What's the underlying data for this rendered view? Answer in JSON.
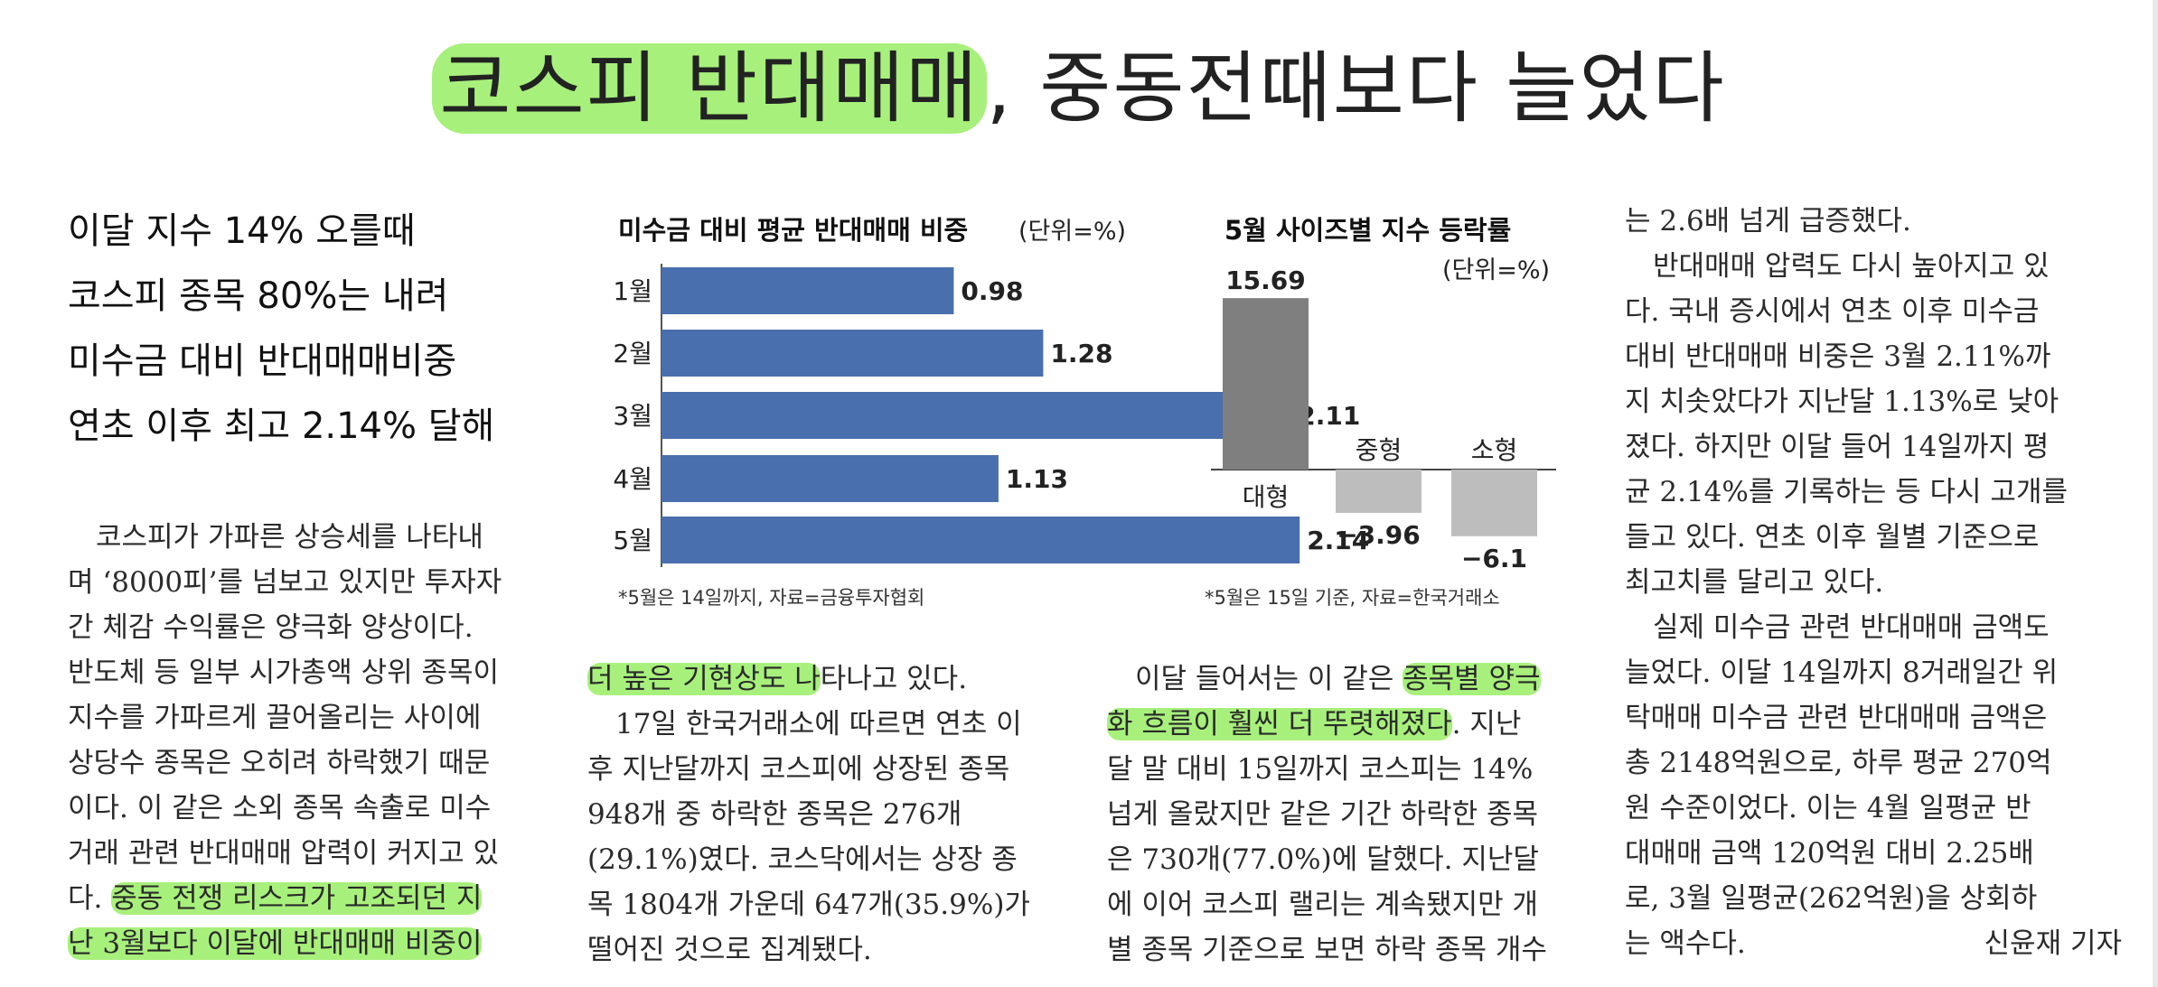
{
  "headline": {
    "highlighted": "코스피 반대매매",
    "rest": ", 중동전때보다 늘었다"
  },
  "subheads": [
    "이달 지수 14% 오를때",
    "코스피 종목 80%는 내려",
    "미수금 대비 반대매매비중",
    "연초 이후 최고 2.14% 달해"
  ],
  "columns": {
    "col1": [
      "　코스피가 가파른 상승세를 나타내",
      "며 ‘8000피’를 넘보고 있지만 투자자",
      "간 체감 수익률은 양극화 양상이다.",
      "반도체 등 일부 시가총액 상위 종목이",
      "지수를 가파르게 끌어올리는 사이에",
      "상당수 종목은 오히려 하락했기 때문",
      "이다. 이 같은 소외 종목 속출로 미수",
      "거래 관련 반대매매 압력이 커지고 있",
      "다. 중동 전쟁 리스크가 고조되던 지",
      "난 3월보다 이달에 반대매매 비중이"
    ],
    "col2": [
      "더 높은 기현상도 나타나고 있다.",
      "　17일 한국거래소에 따르면 연초 이",
      "후 지난달까지 코스피에 상장된 종목",
      "948개 중 하락한 종목은 276개",
      "(29.1%)였다. 코스닥에서는 상장 종",
      "목 1804개 가운데 647개(35.9%)가",
      "떨어진 것으로 집계됐다."
    ],
    "col3": [
      "　이달 들어서는 이 같은 종목별 양극",
      "화 흐름이 훨씬 더 뚜렷해졌다. 지난",
      "달 말 대비 15일까지 코스피는 14%",
      "넘게 올랐지만 같은 기간 하락한 종목",
      "은 730개(77.0%)에 달했다. 지난달",
      "에 이어 코스피 랠리는 계속됐지만 개",
      "별 종목 기준으로 보면 하락 종목 개수"
    ],
    "col4": [
      "는 2.6배 넘게 급증했다.",
      "　반대매매 압력도 다시 높아지고 있",
      "다. 국내 증시에서 연초 이후 미수금",
      "대비 반대매매 비중은 3월 2.11%까",
      "지 치솟았다가 지난달 1.13%로 낮아",
      "졌다. 하지만 이달 들어 14일까지 평",
      "균 2.14%를 기록하는 등 다시 고개를",
      "들고 있다. 연초 이후 월별 기준으로",
      "최고치를 달리고 있다.",
      "　실제 미수금 관련 반대매매 금액도",
      "늘었다. 이달 14일까지 8거래일간 위",
      "탁매매 미수금 관련 반대매매 금액은",
      "총 2148억원으로, 하루 평균 270억",
      "원 수준이었다. 이는 4월 일평균 반",
      "대매매 금액 120억원 대비 2.25배",
      "로, 3월 일평균(262억원)을 상회하",
      "는 액수다."
    ],
    "byline": "신윤재 기자",
    "highlights": {
      "col1_line9": "중동 전쟁 리스크가 고조되던 지",
      "col1_line10": "난 3월보다 이달에 반대매매 비중이",
      "col2_line1": "더 높은 기현상도 나",
      "col3_line1": "종목별 양극",
      "col3_line2": "화 흐름이 훨씬 더 뚜렷해졌다"
    }
  },
  "chart_data": [
    {
      "type": "bar",
      "orientation": "horizontal",
      "title": "미수금 대비 평균 반대매매 비중",
      "unit_label": "(단위=%)",
      "categories": [
        "1월",
        "2월",
        "3월",
        "4월",
        "5월"
      ],
      "values": [
        0.98,
        1.28,
        2.11,
        1.13,
        2.14
      ],
      "value_labels": [
        "0.98",
        "1.28",
        "2.11",
        "1.13",
        "2.14"
      ],
      "note": "*5월은 14일까지, 자료=금융투자협회",
      "bar_color": "#4a6fae"
    },
    {
      "type": "bar",
      "title": "5월 사이즈별 지수 등락률",
      "unit_label": "(단위=%)",
      "categories": [
        "대형",
        "중형",
        "소형"
      ],
      "values": [
        15.69,
        -3.96,
        -6.1
      ],
      "value_labels": [
        "15.69",
        "−3.96",
        "−6.1"
      ],
      "note": "*5월은 15일 기준, 자료=한국거래소",
      "bar_colors": [
        "#7f7f7f",
        "#bdbdbd",
        "#bdbdbd"
      ]
    }
  ]
}
